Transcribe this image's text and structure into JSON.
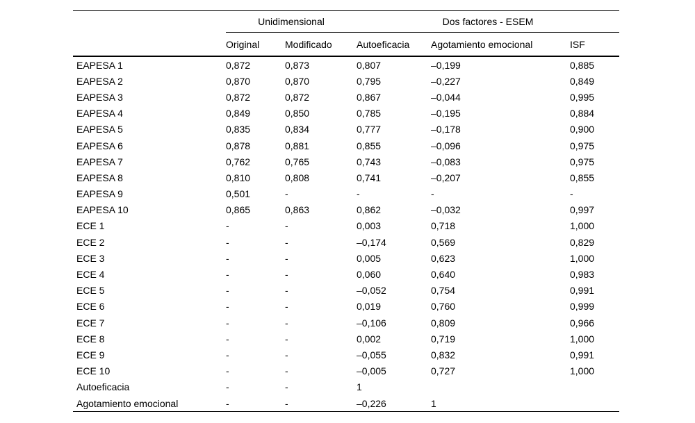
{
  "table": {
    "group_headers": [
      "Unidimensional",
      "Dos factores - ESEM"
    ],
    "columns": [
      "Original",
      "Modificado",
      "Autoeficacia",
      "Agotamiento emocional",
      "ISF"
    ],
    "rows": [
      [
        "EAPESA 1",
        "0,872",
        "0,873",
        "0,807",
        "–0,199",
        "0,885"
      ],
      [
        "EAPESA 2",
        "0,870",
        "0,870",
        "0,795",
        "–0,227",
        "0,849"
      ],
      [
        "EAPESA 3",
        "0,872",
        "0,872",
        "0,867",
        "–0,044",
        "0,995"
      ],
      [
        "EAPESA 4",
        "0,849",
        "0,850",
        "0,785",
        "–0,195",
        "0,884"
      ],
      [
        "EAPESA 5",
        "0,835",
        "0,834",
        "0,777",
        "–0,178",
        "0,900"
      ],
      [
        "EAPESA 6",
        "0,878",
        "0,881",
        "0,855",
        "–0,096",
        "0,975"
      ],
      [
        "EAPESA 7",
        "0,762",
        "0,765",
        "0,743",
        "–0,083",
        "0,975"
      ],
      [
        "EAPESA 8",
        "0,810",
        "0,808",
        "0,741",
        "–0,207",
        "0,855"
      ],
      [
        "EAPESA 9",
        "0,501",
        "-",
        "-",
        "-",
        "-"
      ],
      [
        "EAPESA 10",
        "0,865",
        "0,863",
        "0,862",
        "–0,032",
        "0,997"
      ],
      [
        "ECE 1",
        "-",
        "-",
        "0,003",
        "0,718",
        "1,000"
      ],
      [
        "ECE 2",
        "-",
        "-",
        "–0,174",
        "0,569",
        "0,829"
      ],
      [
        "ECE 3",
        "-",
        "-",
        "0,005",
        "0,623",
        "1,000"
      ],
      [
        "ECE 4",
        "-",
        "-",
        "0,060",
        "0,640",
        "0,983"
      ],
      [
        "ECE 5",
        "-",
        "-",
        "–0,052",
        "0,754",
        "0,991"
      ],
      [
        "ECE 6",
        "-",
        "-",
        "0,019",
        "0,760",
        "0,999"
      ],
      [
        "ECE 7",
        "-",
        "-",
        "–0,106",
        "0,809",
        "0,966"
      ],
      [
        "ECE 8",
        "-",
        "-",
        "0,002",
        "0,719",
        "1,000"
      ],
      [
        "ECE 9",
        "-",
        "-",
        "–0,055",
        "0,832",
        "0,991"
      ],
      [
        "ECE 10",
        "-",
        "-",
        "–0,005",
        "0,727",
        "1,000"
      ],
      [
        "Autoeficacia",
        "-",
        "-",
        "1",
        "",
        ""
      ],
      [
        "Agotamiento emocional",
        "-",
        "-",
        "–0,226",
        "1",
        ""
      ]
    ]
  }
}
